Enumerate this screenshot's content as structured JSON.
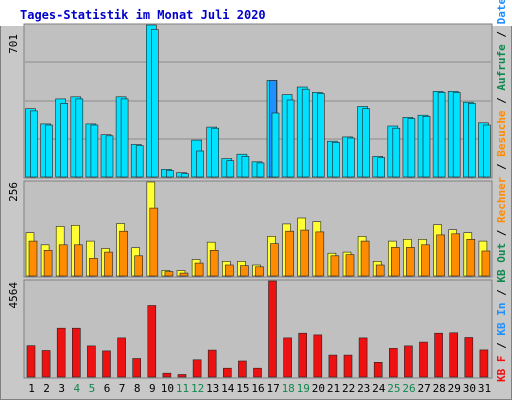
{
  "title": "Tages-Statistik im Monat Juli 2020",
  "colors": {
    "title": "#0000cc",
    "plot_bg": "#c0c0c0",
    "frame": "#b8b8b8",
    "gridline": "#8c8c8c",
    "anfragen": "#0a3a8a",
    "dateien": "#1e90ff",
    "treffer_front": "#00e0ff",
    "rechner_front": "#ff8c00",
    "besuche_back": "#ffff33",
    "kbf": "#ee1111",
    "weekend_label": "#11884e",
    "weekday_label": "#000000",
    "legend_right_blue": "#1e90ff",
    "legend_right_green": "#11884e",
    "legend_right_orange": "#ff8c00",
    "legend_right_red": "#ee1111"
  },
  "right_legend": [
    {
      "text": "Anfragen",
      "color_key": "legend_right_green"
    },
    {
      "text": "/",
      "color_key": "weekday_label"
    },
    {
      "text": "Dateien",
      "color_key": "legend_right_blue"
    },
    {
      "text": "/",
      "color_key": "weekday_label"
    },
    {
      "text": "Aufrufe",
      "color_key": "legend_right_green"
    },
    {
      "text": "/",
      "color_key": "weekday_label"
    },
    {
      "text": "Besuche",
      "color_key": "legend_right_orange"
    },
    {
      "text": "/",
      "color_key": "weekday_label"
    },
    {
      "text": "Rechner",
      "color_key": "legend_right_orange"
    },
    {
      "text": "/",
      "color_key": "weekday_label"
    },
    {
      "text": "KB Out",
      "color_key": "legend_right_green"
    },
    {
      "text": "/",
      "color_key": "weekday_label"
    },
    {
      "text": "KB In",
      "color_key": "legend_right_blue"
    },
    {
      "text": "/",
      "color_key": "weekday_label"
    },
    {
      "text": "KB F",
      "color_key": "legend_right_red"
    }
  ],
  "chart_data": [
    {
      "type": "bar",
      "panel": "top",
      "ymax_label": "701",
      "ylim": [
        0,
        701
      ],
      "categories": [
        "1",
        "2",
        "3",
        "4",
        "5",
        "6",
        "7",
        "8",
        "9",
        "10",
        "11",
        "12",
        "13",
        "14",
        "15",
        "16",
        "17",
        "18",
        "19",
        "20",
        "21",
        "22",
        "23",
        "24",
        "25",
        "26",
        "27",
        "28",
        "29",
        "30",
        "31"
      ],
      "series": [
        {
          "values": [
            315,
            245,
            360,
            370,
            245,
            195,
            370,
            150,
            701,
            35,
            20,
            170,
            230,
            85,
            105,
            70,
            445,
            380,
            415,
            390,
            165,
            185,
            325,
            95,
            235,
            275,
            285,
            395,
            395,
            345,
            250
          ]
        },
        {
          "values": [
            0,
            0,
            0,
            0,
            0,
            0,
            0,
            0,
            0,
            0,
            0,
            0,
            0,
            0,
            0,
            0,
            445,
            0,
            0,
            0,
            0,
            0,
            0,
            0,
            0,
            0,
            0,
            0,
            0,
            0,
            0
          ]
        },
        {
          "values": [
            305,
            240,
            340,
            360,
            240,
            190,
            360,
            145,
            680,
            30,
            15,
            120,
            225,
            75,
            95,
            65,
            295,
            355,
            405,
            385,
            160,
            180,
            315,
            90,
            225,
            270,
            280,
            390,
            390,
            340,
            240
          ]
        }
      ]
    },
    {
      "type": "bar",
      "panel": "middle",
      "ymax_label": "256",
      "ylim": [
        0,
        256
      ],
      "categories": [
        "1",
        "2",
        "3",
        "4",
        "5",
        "6",
        "7",
        "8",
        "9",
        "10",
        "11",
        "12",
        "13",
        "14",
        "15",
        "16",
        "17",
        "18",
        "19",
        "20",
        "21",
        "22",
        "23",
        "24",
        "25",
        "26",
        "27",
        "28",
        "29",
        "30",
        "31"
      ],
      "series": [
        {
          "values": [
            118,
            85,
            135,
            138,
            95,
            75,
            143,
            77,
            256,
            15,
            15,
            45,
            92,
            40,
            40,
            30,
            108,
            142,
            158,
            148,
            62,
            65,
            108,
            40,
            95,
            100,
            100,
            140,
            126,
            118,
            95
          ]
        },
        {
          "values": [
            95,
            70,
            85,
            85,
            48,
            65,
            122,
            55,
            185,
            12,
            8,
            35,
            70,
            30,
            28,
            25,
            88,
            122,
            125,
            120,
            55,
            58,
            95,
            30,
            78,
            78,
            85,
            112,
            115,
            100,
            68
          ]
        }
      ]
    },
    {
      "type": "bar",
      "panel": "bottom",
      "ymax_label": "4564",
      "ylim": [
        0,
        4564
      ],
      "categories": [
        "1",
        "2",
        "3",
        "4",
        "5",
        "6",
        "7",
        "8",
        "9",
        "10",
        "11",
        "12",
        "13",
        "14",
        "15",
        "16",
        "17",
        "18",
        "19",
        "20",
        "21",
        "22",
        "23",
        "24",
        "25",
        "26",
        "27",
        "28",
        "29",
        "30",
        "31"
      ],
      "series": [
        {
          "values": [
            1490,
            1260,
            2320,
            2320,
            1480,
            1240,
            1860,
            880,
            3400,
            180,
            120,
            820,
            1280,
            420,
            760,
            420,
            4564,
            1860,
            2080,
            2000,
            1040,
            1040,
            1860,
            700,
            1360,
            1480,
            1660,
            2080,
            2100,
            1880,
            1290
          ]
        }
      ]
    }
  ]
}
